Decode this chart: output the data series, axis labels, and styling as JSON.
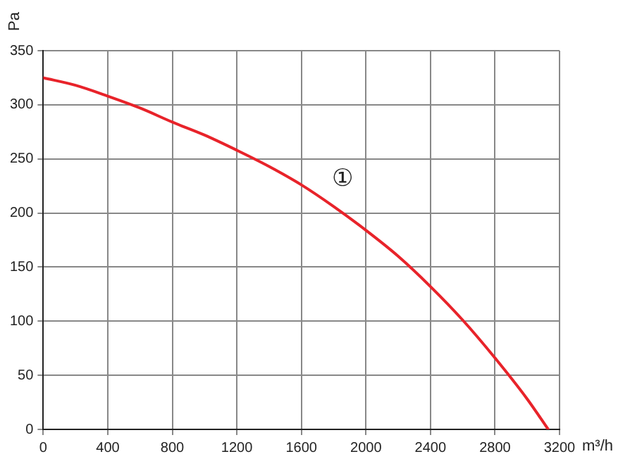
{
  "chart_data": {
    "type": "line",
    "xlabel": "m³/h",
    "ylabel": "Pa",
    "x": [
      0,
      200,
      400,
      600,
      800,
      1000,
      1200,
      1400,
      1600,
      1800,
      2000,
      2200,
      2400,
      2600,
      2800,
      3000,
      3130
    ],
    "series": [
      {
        "color": "#e8232a",
        "values": [
          325,
          318,
          308,
          297,
          284,
          272,
          258,
          243,
          226,
          206,
          184,
          160,
          132,
          101,
          66,
          28,
          0
        ]
      }
    ],
    "xlim": [
      0,
      3200
    ],
    "xticks": [
      0,
      400,
      800,
      1200,
      1600,
      2000,
      2400,
      2800,
      3200
    ],
    "ylim": [
      0,
      350
    ],
    "yticks": [
      0,
      50,
      100,
      150,
      200,
      250,
      300,
      350
    ],
    "grid": true,
    "marker": "none",
    "line_style": "solid",
    "annotations": [
      "①"
    ]
  }
}
